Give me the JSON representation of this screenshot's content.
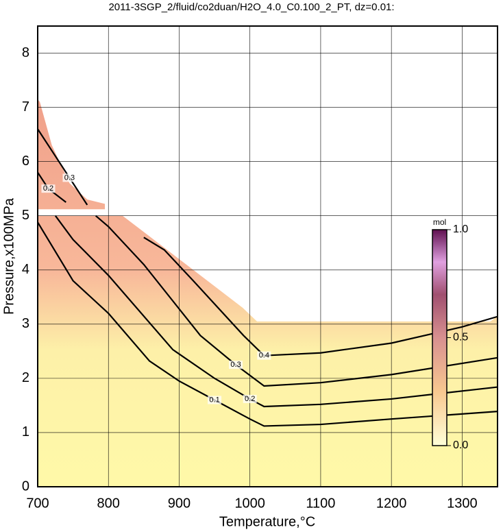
{
  "chart_data": {
    "type": "contour",
    "title": "2011-3SGP_2/fluid/co2duan/H2O_4.0_C0.100_2_PT, dz=0.01:",
    "xlabel": "Temperature,°C",
    "ylabel": "Pressure,x100MPa",
    "xlim": [
      700,
      1350
    ],
    "ylim": [
      0,
      8.5
    ],
    "xticks": [
      700,
      800,
      900,
      1000,
      1100,
      1200,
      1300
    ],
    "yticks": [
      0,
      1,
      2,
      3,
      4,
      5,
      6,
      7,
      8
    ],
    "grid": true,
    "filled_regions": [
      {
        "x": [
          700,
          703,
          720,
          745,
          770,
          795,
          795,
          700
        ],
        "y": [
          7.15,
          7.1,
          6.3,
          5.6,
          5.3,
          5.22,
          5.12,
          5.12
        ]
      },
      {
        "x": [
          700,
          820,
          850,
          880,
          920,
          960,
          990,
          1010,
          1340,
          1350,
          1350,
          700
        ],
        "y": [
          5.0,
          5.0,
          4.7,
          4.4,
          4.0,
          3.6,
          3.3,
          3.05,
          3.05,
          3.15,
          0,
          0
        ]
      }
    ],
    "series": [
      {
        "name": "0.1",
        "color": "#000000",
        "x": [
          700,
          750,
          800,
          858,
          900,
          950,
          1000,
          1020,
          1100,
          1200,
          1350
        ],
        "y": [
          4.88,
          3.8,
          3.2,
          2.32,
          1.95,
          1.6,
          1.25,
          1.12,
          1.15,
          1.25,
          1.39
        ]
      },
      {
        "name": "0.2",
        "color": "#000000",
        "x": [
          725,
          750,
          800,
          891,
          950,
          1000,
          1020,
          1100,
          1200,
          1350
        ],
        "y": [
          5.0,
          4.56,
          3.9,
          2.53,
          2.0,
          1.62,
          1.48,
          1.52,
          1.62,
          1.84
        ]
      },
      {
        "name": "0.3",
        "color": "#000000",
        "x": [
          782,
          800,
          850,
          930,
          980,
          1020,
          1100,
          1200,
          1350
        ],
        "y": [
          5.0,
          4.8,
          4.1,
          2.79,
          2.25,
          1.86,
          1.92,
          2.07,
          2.38
        ]
      },
      {
        "name": "0.4",
        "color": "#000000",
        "x": [
          850,
          879,
          920,
          991,
          1020,
          1100,
          1200,
          1300,
          1350
        ],
        "y": [
          4.6,
          4.37,
          3.8,
          2.79,
          2.42,
          2.47,
          2.65,
          2.95,
          3.14
        ]
      },
      {
        "name": "0.3",
        "color": "#000000",
        "x": [
          700,
          720,
          745,
          770
        ],
        "y": [
          6.6,
          6.2,
          5.7,
          5.2
        ]
      },
      {
        "name": "0.2",
        "color": "#000000",
        "x": [
          700,
          715,
          740
        ],
        "y": [
          5.8,
          5.5,
          5.25
        ]
      }
    ],
    "colorbar": {
      "label": "mol",
      "lim": [
        0,
        1
      ],
      "ticks": [
        {
          "value": 0,
          "label": "0.0"
        },
        {
          "value": 0.5,
          "label": "0.5"
        },
        {
          "value": 1,
          "label": "1.0"
        }
      ]
    }
  }
}
